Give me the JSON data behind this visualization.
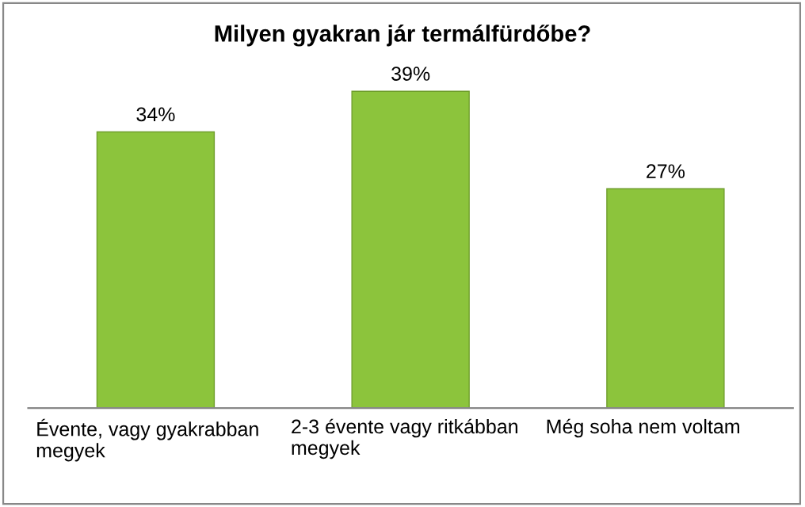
{
  "chart_data": {
    "type": "bar",
    "title": "Milyen gyakran jár termálfürdőbe?",
    "categories": [
      "Évente, vagy gyakrabban\nmegyek",
      "2-3 évente vagy ritkábban\nmegyek",
      "Még soha nem voltam"
    ],
    "values": [
      34,
      39,
      27
    ],
    "color": "#8cc43c",
    "value_labels": [
      "34%",
      "39%",
      "27%"
    ]
  }
}
